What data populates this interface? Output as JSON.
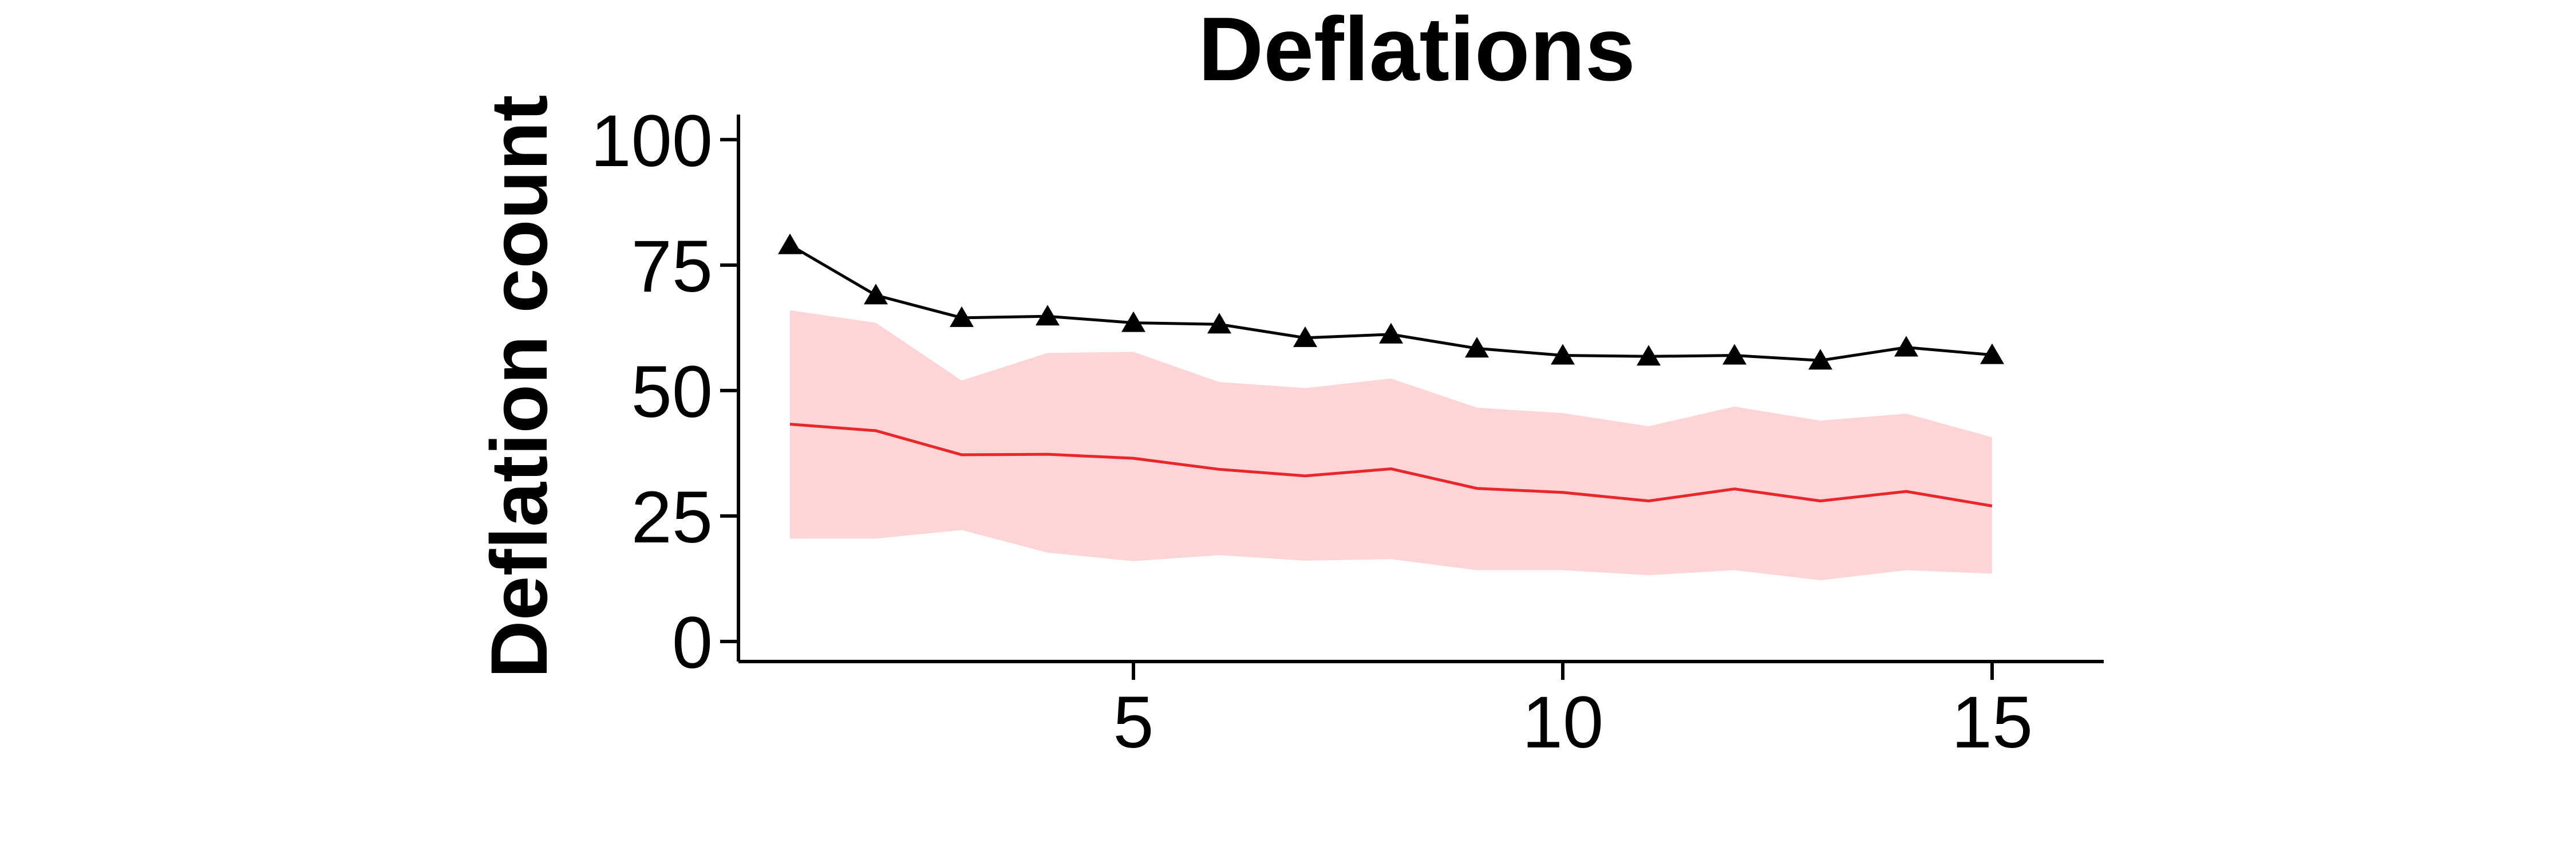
{
  "chart_data": {
    "type": "line",
    "title": "Deflations",
    "xlabel": "",
    "ylabel": "Deflation count",
    "x": [
      1,
      2,
      3,
      4,
      5,
      6,
      7,
      8,
      9,
      10,
      11,
      12,
      13,
      14,
      15
    ],
    "xlim": [
      0.4,
      16.3
    ],
    "ylim": [
      -4,
      105
    ],
    "x_ticks": [
      5,
      10,
      15
    ],
    "y_ticks": [
      0,
      25,
      50,
      75,
      100
    ],
    "grid": false,
    "legend": "none",
    "series": [
      {
        "style": "line-with-triangle-markers",
        "color": "#000000",
        "values": [
          79,
          69,
          64.5,
          64.8,
          63.5,
          63.2,
          60.5,
          61.2,
          58.4,
          57,
          56.8,
          57,
          56,
          58.6,
          57.1
        ]
      },
      {
        "style": "line",
        "color": "#e8262b",
        "values": [
          43.3,
          42,
          37.2,
          37.3,
          36.5,
          34.3,
          33,
          34.4,
          30.5,
          29.7,
          28,
          30.4,
          28,
          29.9,
          27
        ]
      }
    ],
    "band": {
      "color": "#fdd5d7",
      "lower": [
        20.5,
        20.5,
        22.2,
        17.7,
        16,
        17.2,
        16.1,
        16.4,
        14.2,
        14.2,
        13.2,
        14.2,
        12.2,
        14.2,
        13.5
      ],
      "upper": [
        66,
        63.5,
        52,
        57.5,
        57.7,
        51.7,
        50.5,
        52.4,
        46.6,
        45.5,
        42.9,
        46.8,
        44,
        45.4,
        40.7
      ]
    }
  }
}
